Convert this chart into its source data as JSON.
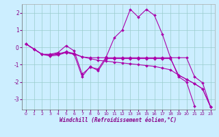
{
  "xlabel": "Windchill (Refroidissement éolien,°C)",
  "bg_color": "#cceeff",
  "line_color": "#aa00aa",
  "grid_color": "#99cccc",
  "xlim": [
    -0.5,
    23.5
  ],
  "ylim": [
    -3.6,
    2.5
  ],
  "xticks": [
    0,
    1,
    2,
    3,
    4,
    5,
    6,
    7,
    8,
    9,
    10,
    11,
    12,
    13,
    14,
    15,
    16,
    17,
    18,
    19,
    20,
    21,
    22,
    23
  ],
  "yticks": [
    -3,
    -2,
    -1,
    0,
    1,
    2
  ],
  "series": [
    {
      "x": [
        0,
        1,
        2,
        3,
        4,
        5,
        6,
        7,
        8,
        9,
        10,
        11,
        12,
        13,
        14,
        15,
        16,
        17,
        18,
        19,
        20,
        21,
        22,
        23
      ],
      "y": [
        0.2,
        -0.1,
        -0.4,
        -0.4,
        -0.3,
        0.1,
        -0.2,
        -1.55,
        -1.15,
        -1.25,
        -0.55,
        0.55,
        1.0,
        2.2,
        1.75,
        2.2,
        1.85,
        0.75,
        -0.6,
        -1.7,
        -2.0,
        -3.4,
        null,
        null
      ]
    },
    {
      "x": [
        0,
        1,
        2,
        3,
        4,
        5,
        6,
        7,
        8,
        9,
        10,
        11,
        12,
        13,
        14,
        15,
        16,
        17,
        18,
        19,
        20,
        21,
        22,
        23
      ],
      "y": [
        0.2,
        -0.1,
        -0.4,
        -0.45,
        -0.35,
        -0.3,
        -0.4,
        -0.55,
        -0.6,
        -0.6,
        -0.6,
        -0.6,
        -0.6,
        -0.6,
        -0.6,
        -0.6,
        -0.6,
        -0.6,
        -0.6,
        -0.6,
        -0.6,
        -1.7,
        -2.05,
        -3.45
      ]
    },
    {
      "x": [
        0,
        1,
        2,
        3,
        4,
        5,
        6,
        7,
        8,
        9,
        10,
        11,
        12,
        13,
        14,
        15,
        16,
        17,
        18,
        19,
        20,
        21,
        22,
        23
      ],
      "y": [
        0.2,
        -0.1,
        -0.4,
        -0.45,
        -0.4,
        -0.25,
        -0.35,
        -0.55,
        -0.65,
        -0.75,
        -0.8,
        -0.85,
        -0.9,
        -0.95,
        -1.0,
        -1.05,
        -1.1,
        -1.2,
        -1.3,
        -1.6,
        -1.85,
        -2.1,
        -2.4,
        -3.45
      ]
    },
    {
      "x": [
        0,
        1,
        2,
        3,
        4,
        5,
        6,
        7,
        8,
        9,
        10,
        11,
        12,
        13,
        14,
        15,
        16,
        17,
        18,
        19,
        20,
        21,
        22,
        23
      ],
      "y": [
        0.2,
        -0.1,
        -0.4,
        -0.5,
        -0.45,
        -0.3,
        -0.4,
        -1.7,
        -1.1,
        -1.35,
        -0.65,
        -0.65,
        -0.65,
        -0.65,
        -0.65,
        -0.65,
        -0.65,
        -0.65,
        -0.65,
        -1.6,
        -1.85,
        -2.1,
        -2.4,
        -3.45
      ]
    }
  ]
}
